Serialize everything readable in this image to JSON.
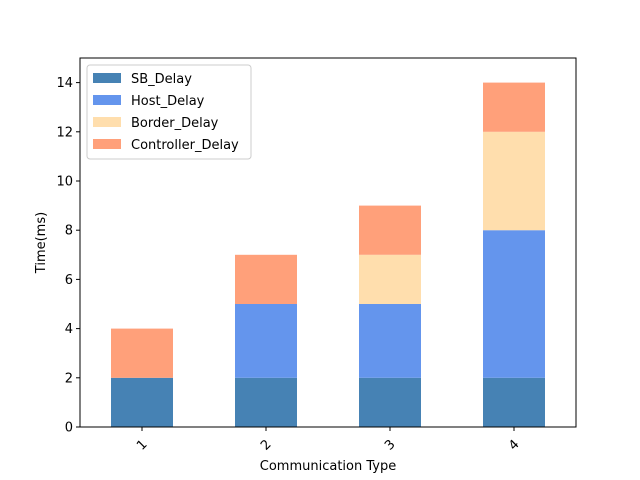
{
  "chart_data": {
    "type": "bar",
    "stacked": true,
    "categories": [
      "1",
      "2",
      "3",
      "4"
    ],
    "xlabel": "Communication Type",
    "ylabel": "Time(ms)",
    "ylim": [
      0,
      15
    ],
    "yticks": [
      "0",
      "2",
      "4",
      "6",
      "8",
      "10",
      "12",
      "14"
    ],
    "grid": false,
    "legend_position": "top-left",
    "series": [
      {
        "name": "SB_Delay",
        "color": "#4682b4",
        "values": [
          2,
          2,
          2,
          2
        ]
      },
      {
        "name": "Host_Delay",
        "color": "#6495ed",
        "values": [
          0,
          3,
          3,
          6
        ]
      },
      {
        "name": "Border_Delay",
        "color": "#ffdead",
        "values": [
          0,
          0,
          2,
          4
        ]
      },
      {
        "name": "Controller_Delay",
        "color": "#ffa07a",
        "values": [
          2,
          2,
          2,
          2
        ]
      }
    ]
  }
}
